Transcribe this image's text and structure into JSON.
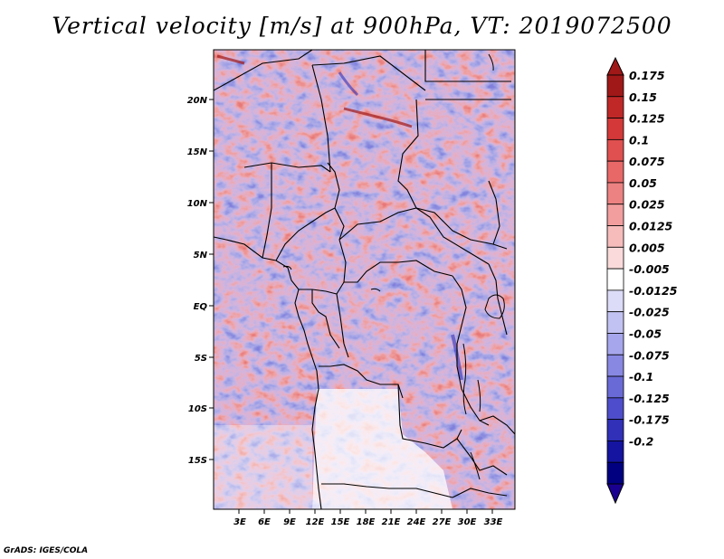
{
  "title": "Vertical velocity [m/s] at 900hPa, VT: 2019072500",
  "credit": "GrADS: IGES/COLA",
  "map": {
    "region": "Central Africa",
    "lat_labels": [
      "20N",
      "15N",
      "10N",
      "5N",
      "EQ",
      "5S",
      "10S",
      "15S"
    ],
    "lon_labels": [
      "3E",
      "6E",
      "9E",
      "12E",
      "15E",
      "18E",
      "21E",
      "24E",
      "27E",
      "30E",
      "33E"
    ]
  },
  "colorbar": {
    "levels": [
      "0.175",
      "0.15",
      "0.125",
      "0.1",
      "0.075",
      "0.05",
      "0.025",
      "0.0125",
      "0.005",
      "-0.005",
      "-0.0125",
      "-0.025",
      "-0.05",
      "-0.075",
      "-0.1",
      "-0.125",
      "-0.175",
      "-0.2"
    ],
    "colors": [
      "#a01818",
      "#c02828",
      "#d43838",
      "#e05050",
      "#e86868",
      "#ec8282",
      "#f29e9e",
      "#f6bcbc",
      "#fadada",
      "#ffffff",
      "#dcdcf8",
      "#c2c2f2",
      "#a6a6ec",
      "#8888e2",
      "#6a6ad6",
      "#4e4ecc",
      "#3030b8",
      "#1414a0",
      "#000080"
    ],
    "top_color": "#a01818",
    "bottom_color": "#1a0090"
  }
}
